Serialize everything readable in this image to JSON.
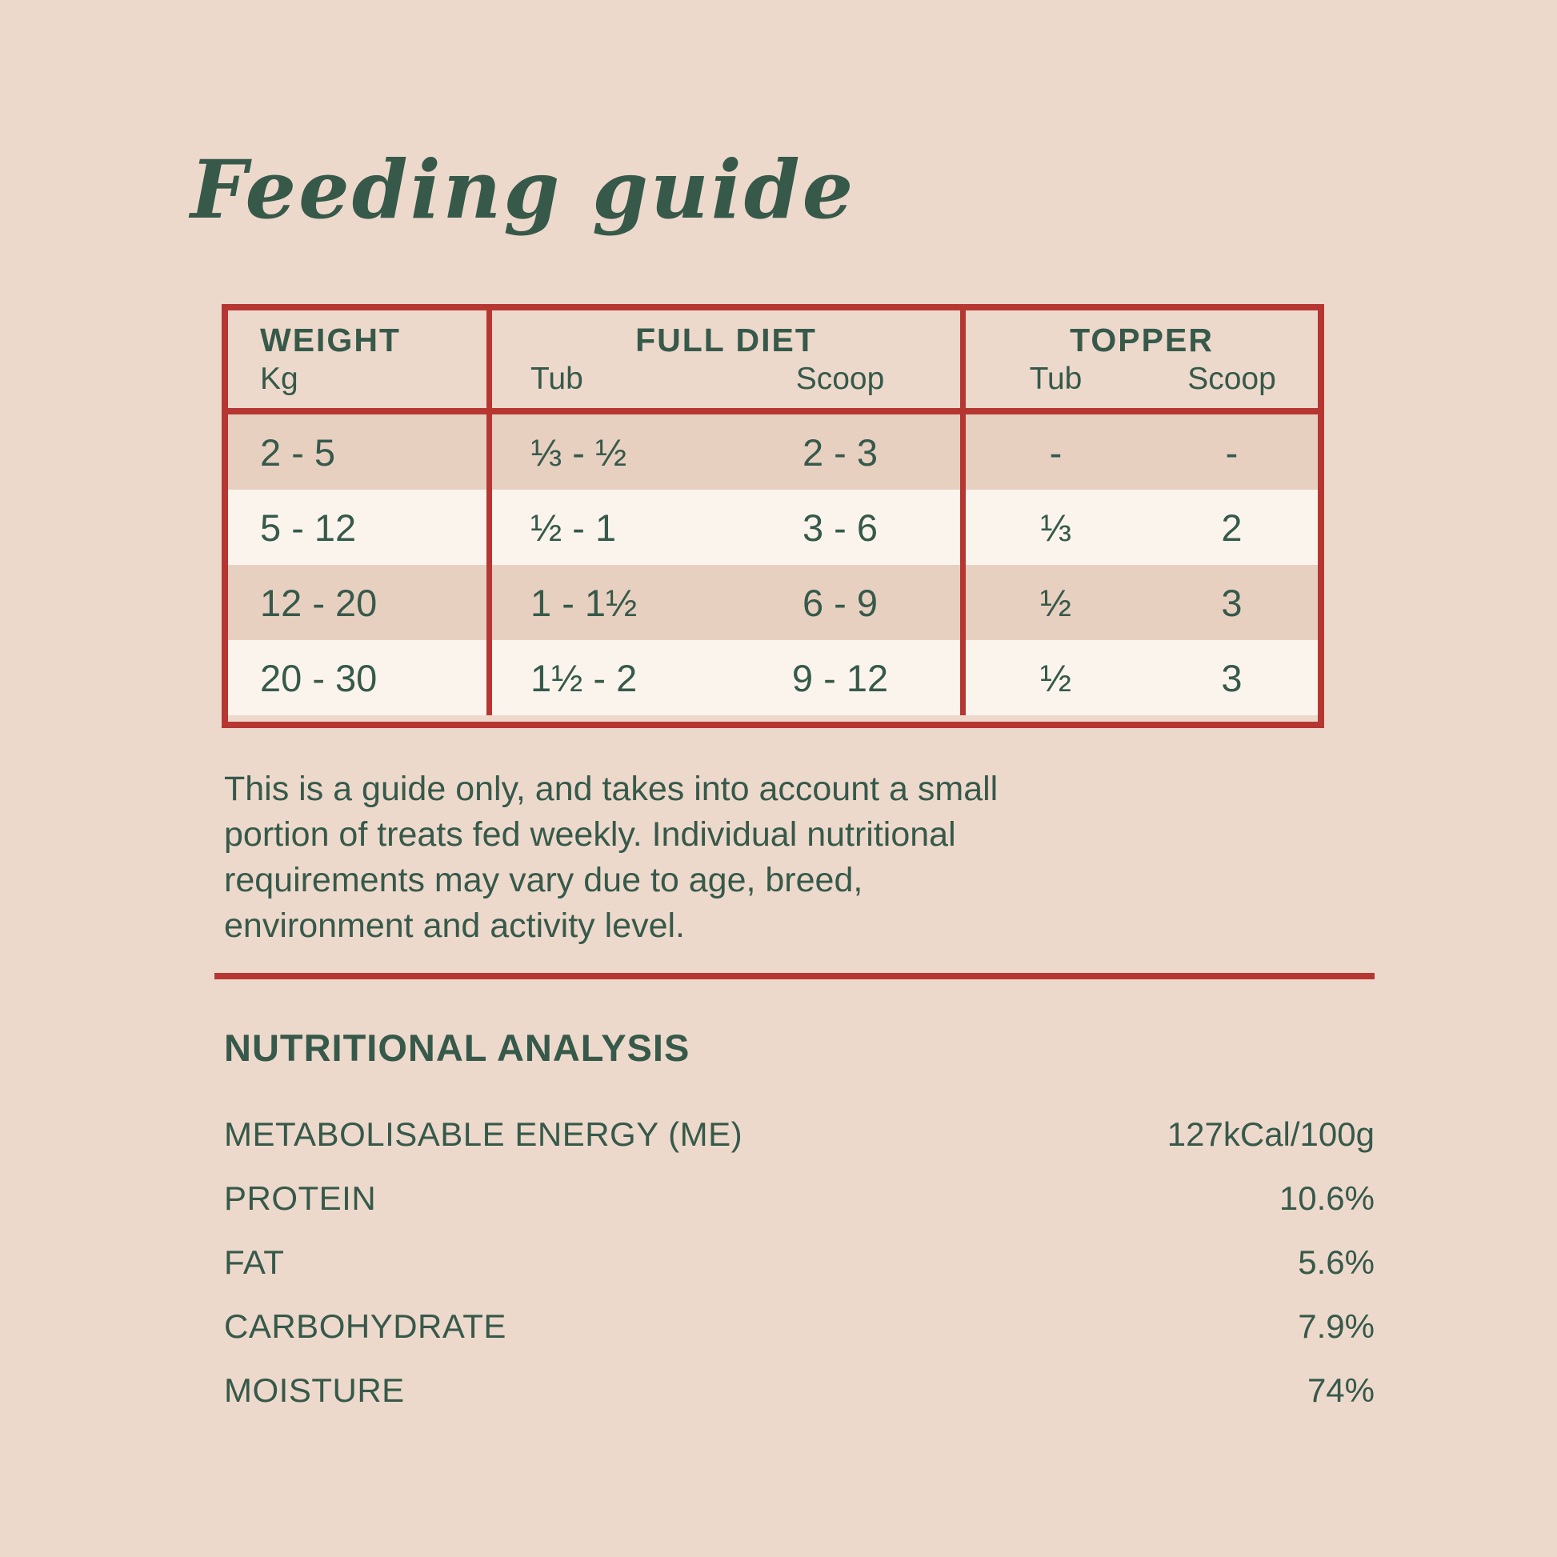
{
  "page": {
    "title": "Feeding guide"
  },
  "colors": {
    "background": "#EDD9CB",
    "row_tan": "#E8D0C1",
    "row_cream": "#FBF4ED",
    "border_red": "#B63732",
    "text_green": "#36594A"
  },
  "table": {
    "headers": {
      "weight": {
        "title": "WEIGHT",
        "sub": "Kg"
      },
      "full_diet": {
        "title": "FULL DIET",
        "sub1": "Tub",
        "sub2": "Scoop"
      },
      "topper": {
        "title": "TOPPER",
        "sub1": "Tub",
        "sub2": "Scoop"
      }
    },
    "rows": [
      {
        "weight": "2 - 5",
        "full_tub": "⅓ - ½",
        "full_scoop": "2 - 3",
        "top_tub": "-",
        "top_scoop": "-"
      },
      {
        "weight": "5 - 12",
        "full_tub": "½ - 1",
        "full_scoop": "3 - 6",
        "top_tub": "⅓",
        "top_scoop": "2"
      },
      {
        "weight": "12 - 20",
        "full_tub": "1 - 1½",
        "full_scoop": "6 - 9",
        "top_tub": "½",
        "top_scoop": "3"
      },
      {
        "weight": "20 - 30",
        "full_tub": "1½ - 2",
        "full_scoop": "9 - 12",
        "top_tub": "½",
        "top_scoop": "3"
      }
    ]
  },
  "disclaimer": {
    "lines": [
      "This is a guide only, and takes into account a small",
      "portion of treats fed weekly. Individual nutritional",
      "requirements may vary due to age, breed,",
      "environment and activity level."
    ]
  },
  "analysis": {
    "title": "NUTRITIONAL ANALYSIS",
    "rows": [
      {
        "label": "METABOLISABLE ENERGY (ME)",
        "value": "127kCal/100g"
      },
      {
        "label": "PROTEIN",
        "value": "10.6%"
      },
      {
        "label": "FAT",
        "value": "5.6%"
      },
      {
        "label": "CARBOHYDRATE",
        "value": "7.9%"
      },
      {
        "label": "MOISTURE",
        "value": "74%"
      }
    ]
  }
}
